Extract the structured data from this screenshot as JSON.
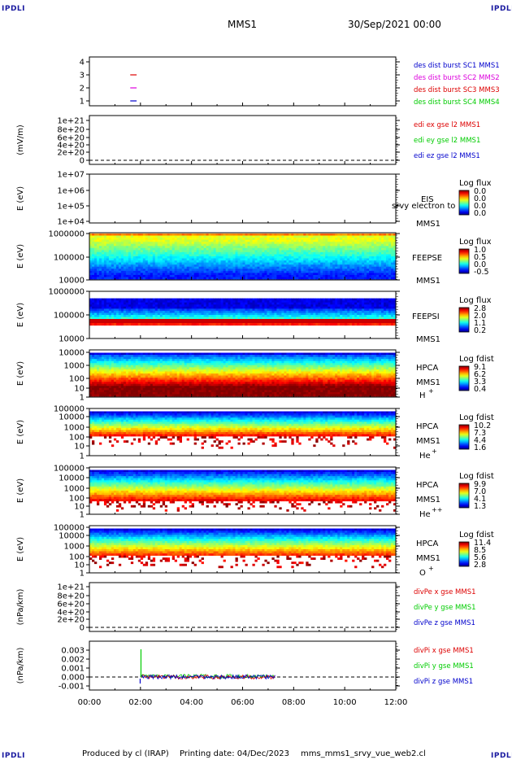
{
  "header": {
    "corner_tl": "IPDLI",
    "corner_tr": "IPDLI",
    "corner_bl": "IPDLI",
    "corner_br": "IPDLI",
    "spacecraft": "MMS1",
    "date": "30/Sep/2021 00:00"
  },
  "footer": {
    "produced_by": "Produced by cl (IRAP)",
    "printing_date": "Printing date: 04/Dec/2023",
    "script": "mms_mms1_srvy_vue_web2.cl"
  },
  "colors": {
    "blue": "#0000cc",
    "magenta": "#dd00dd",
    "red": "#dd0000",
    "green": "#00cc00"
  },
  "chart_data": {
    "type": "heatmap",
    "x_ticks": [
      "00:00",
      "02:00",
      "04:00",
      "06:00",
      "08:00",
      "10:00",
      "12:00"
    ],
    "x_range_hours": [
      0,
      12
    ],
    "panels": [
      {
        "id": "burst",
        "type": "line",
        "ylabel": "",
        "yticks": [
          "4",
          "3",
          "2",
          "1"
        ],
        "ylim": [
          0.5,
          4.5
        ],
        "legend": [
          {
            "text": "des dist burst SC1 MMS1",
            "color": "#0000cc"
          },
          {
            "text": "des dist burst SC2 MMS2",
            "color": "#dd00dd"
          },
          {
            "text": "des dist burst SC3 MMS3",
            "color": "#dd0000"
          },
          {
            "text": "des dist burst SC4 MMS4",
            "color": "#00cc00"
          }
        ],
        "segments": [
          {
            "sc": 3,
            "x": [
              1.6,
              1.85
            ],
            "color": "#dd0000"
          },
          {
            "sc": 2,
            "x": [
              1.6,
              1.85
            ],
            "color": "#dd00dd"
          },
          {
            "sc": 1,
            "x": [
              1.6,
              1.85
            ],
            "color": "#0000cc"
          }
        ]
      },
      {
        "id": "edi",
        "type": "line",
        "ylabel": "(mV/m)",
        "yticks": [
          "1e+21",
          "8e+20",
          "6e+20",
          "4e+20",
          "2e+20",
          "0"
        ],
        "legend": [
          {
            "text": "edi ex gse l2 MMS1",
            "color": "#dd0000"
          },
          {
            "text": "edi ey gse l2 MMS1",
            "color": "#00cc00"
          },
          {
            "text": "edi ez gse l2 MMS1",
            "color": "#0000cc"
          }
        ]
      },
      {
        "id": "eis",
        "type": "heatmap",
        "ylabel": "E (eV)",
        "yticks": [
          "1e+07",
          "1e+06",
          "1e+05",
          "1e+04"
        ],
        "instrument": "EIS",
        "sc_label": "MMS1",
        "overlay": "srvy electron to",
        "cbar_title": "Log flux",
        "cbar_ticks": [
          "0.0",
          "0.0",
          "0.0",
          "0.0"
        ]
      },
      {
        "id": "feepse",
        "type": "heatmap",
        "ylabel": "E (eV)",
        "yticks": [
          "1000000",
          "100000",
          "10000"
        ],
        "instrument": "FEEPSE",
        "sc_label": "MMS1",
        "cbar_title": "Log flux",
        "cbar_ticks": [
          "1.0",
          "0.5",
          "0.0",
          "-0.5"
        ]
      },
      {
        "id": "feepsi",
        "type": "heatmap",
        "ylabel": "E (eV)",
        "yticks": [
          "1000000",
          "100000",
          "10000"
        ],
        "instrument": "FEEPSI",
        "sc_label": "MMS1",
        "cbar_title": "Log flux",
        "cbar_ticks": [
          "2.8",
          "2.0",
          "1.1",
          "0.2"
        ]
      },
      {
        "id": "hpca_h",
        "type": "heatmap",
        "ylabel": "E (eV)",
        "yticks": [
          "10000",
          "1000",
          "100",
          "10",
          "1"
        ],
        "instrument": "HPCA",
        "sc_label": "MMS1",
        "species": "H",
        "charge": "+",
        "cbar_title": "Log fdist",
        "cbar_ticks": [
          "9.1",
          "6.2",
          "3.3",
          "0.4"
        ]
      },
      {
        "id": "hpca_he",
        "type": "heatmap",
        "ylabel": "E (eV)",
        "yticks": [
          "100000",
          "10000",
          "1000",
          "100",
          "10",
          "1"
        ],
        "instrument": "HPCA",
        "sc_label": "MMS1",
        "species": "He",
        "charge": "+",
        "cbar_title": "Log fdist",
        "cbar_ticks": [
          "10.2",
          "7.3",
          "4.4",
          "1.6"
        ]
      },
      {
        "id": "hpca_hepp",
        "type": "heatmap",
        "ylabel": "E (eV)",
        "yticks": [
          "100000",
          "10000",
          "1000",
          "100",
          "10",
          "1"
        ],
        "instrument": "HPCA",
        "sc_label": "MMS1",
        "species": "He",
        "charge": "++",
        "cbar_title": "Log fdist",
        "cbar_ticks": [
          "9.9",
          "7.0",
          "4.1",
          "1.3"
        ]
      },
      {
        "id": "hpca_o",
        "type": "heatmap",
        "ylabel": "E (eV)",
        "yticks": [
          "100000",
          "10000",
          "1000",
          "100",
          "10",
          "1"
        ],
        "instrument": "HPCA",
        "sc_label": "MMS1",
        "species": "O",
        "charge": "+",
        "cbar_title": "Log fdist",
        "cbar_ticks": [
          "11.4",
          "8.5",
          "5.6",
          "2.8"
        ]
      },
      {
        "id": "divpe",
        "type": "line",
        "ylabel": "(nPa/km)",
        "yticks": [
          "1e+21",
          "8e+20",
          "6e+20",
          "4e+20",
          "2e+20",
          "0"
        ],
        "legend": [
          {
            "text": "divPe x gse MMS1",
            "color": "#dd0000"
          },
          {
            "text": "divPe y gse MMS1",
            "color": "#00cc00"
          },
          {
            "text": "divPe z gse MMS1",
            "color": "#0000cc"
          }
        ]
      },
      {
        "id": "divpi",
        "type": "line",
        "ylabel": "(nPa/km)",
        "yticks": [
          "0.003",
          "0.002",
          "0.001",
          "0.000",
          "-0.001"
        ],
        "ylim": [
          -0.0013,
          0.0035
        ],
        "legend": [
          {
            "text": "divPi x gse MMS1",
            "color": "#dd0000"
          },
          {
            "text": "divPi y gse MMS1",
            "color": "#00cc00"
          },
          {
            "text": "divPi z gse MMS1",
            "color": "#0000cc"
          }
        ],
        "data_x_range": [
          2.0,
          7.3
        ],
        "spike": {
          "x": 2.02,
          "y": 0.0031
        },
        "baseline": 0.0
      }
    ]
  }
}
